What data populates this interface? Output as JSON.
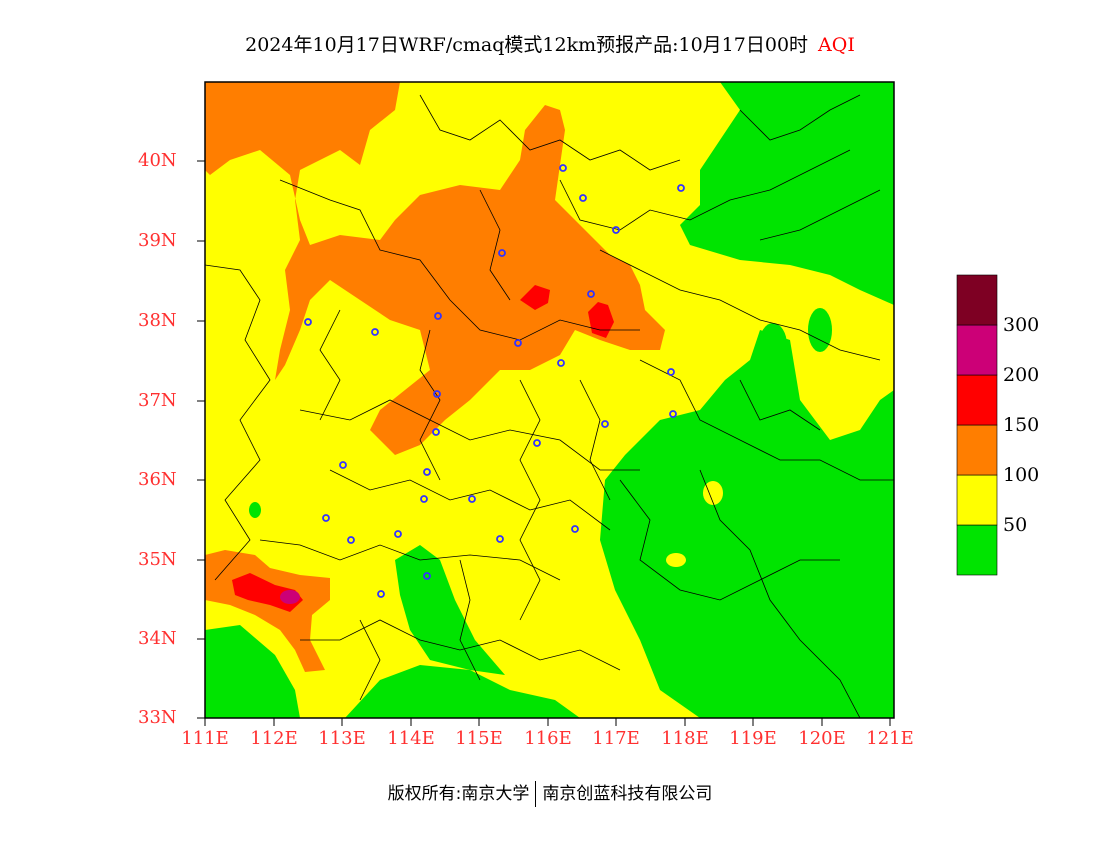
{
  "title": {
    "main": "2024年10月17日WRF/cmaq模式12km预报产品:10月17日00时",
    "variable": "AQI"
  },
  "footer": {
    "left": "版权所有:南京大学",
    "right": "南京创蓝科技有限公司"
  },
  "map": {
    "lon_range": [
      111,
      121.5
    ],
    "lat_range": [
      33,
      41
    ],
    "lat_ticks": [
      "40N",
      "39N",
      "38N",
      "37N",
      "36N",
      "35N",
      "34N",
      "33N"
    ],
    "lon_ticks": [
      "111E",
      "112E",
      "113E",
      "114E",
      "115E",
      "116E",
      "117E",
      "118E",
      "119E",
      "120E",
      "121E"
    ],
    "tick_label_color": "#ff3030"
  },
  "colorbar": {
    "colors": [
      "#00e400",
      "#ffff00",
      "#ff7e00",
      "#ff0000",
      "#cc0077",
      "#7e0023"
    ],
    "labels": [
      "50",
      "100",
      "150",
      "200",
      "300"
    ]
  }
}
